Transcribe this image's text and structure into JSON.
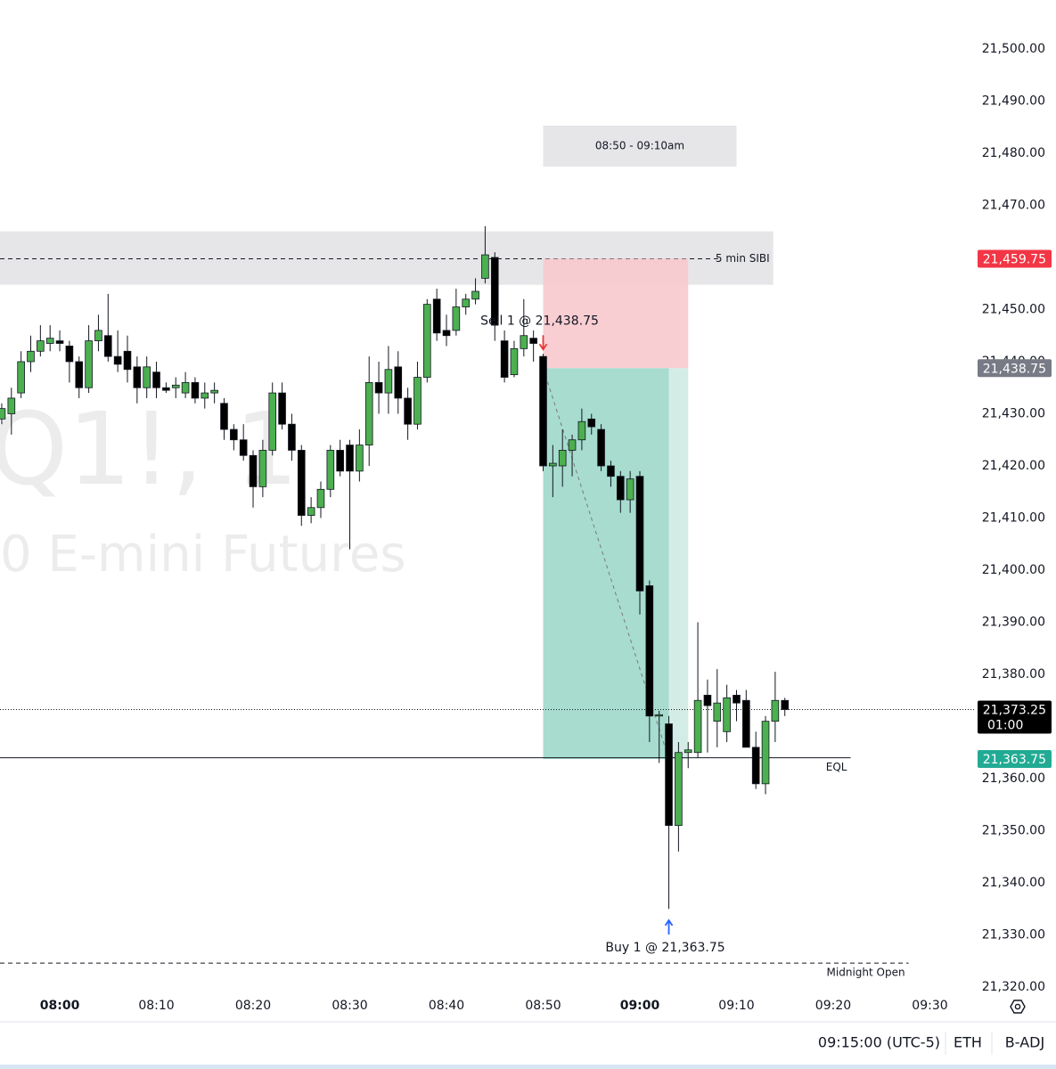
{
  "chart_data": {
    "type": "candlestick",
    "watermark": [
      "Q1!, 1",
      "0 E-mini Futures"
    ],
    "x": [
      474,
      475,
      476,
      477,
      478,
      479,
      480,
      481,
      482,
      483,
      484,
      485,
      486,
      487,
      488,
      489,
      490,
      491,
      492,
      493,
      494,
      495,
      496,
      497,
      498,
      499,
      500,
      501,
      502,
      503,
      504,
      505,
      506,
      507,
      508,
      509,
      510,
      511,
      512,
      513,
      514,
      515,
      516,
      517,
      518,
      519,
      520,
      521,
      522,
      523,
      524,
      525,
      526,
      527,
      528,
      529,
      530,
      531,
      532,
      533,
      534,
      535,
      536,
      537,
      538,
      539,
      540,
      541,
      542,
      543,
      544,
      545,
      546,
      547,
      548,
      549,
      550,
      551,
      552,
      553,
      554,
      555
    ],
    "open": [
      21429,
      21430,
      21434,
      21440,
      21442,
      21443.5,
      21444,
      21443,
      21440,
      21435,
      21444,
      21445,
      21441,
      21442,
      21439,
      21435,
      21438,
      21435,
      21435,
      21434,
      21436,
      21433,
      21434,
      21432,
      21427,
      21425,
      21422,
      21416,
      21423,
      21434,
      21428,
      21423,
      21410.5,
      21412,
      21415.5,
      21423,
      21424,
      21419,
      21424,
      21436,
      21434,
      21439,
      21433,
      21428,
      21437,
      21452,
      21446,
      21446,
      21450.5,
      21452,
      21456,
      21460,
      21444,
      21437.5,
      21442.5,
      21444.5,
      21441,
      21420,
      21420,
      21423,
      21425,
      21429,
      21427,
      21420,
      21418,
      21413.5,
      21418,
      21397,
      21372,
      21370.5,
      21351,
      21365,
      21365,
      21376,
      21371,
      21369,
      21376,
      21375,
      21366,
      21359,
      21371,
      21375
    ],
    "high": [
      21432,
      21435,
      21442,
      21445,
      21447,
      21447,
      21446,
      21444,
      21441,
      21447,
      21449,
      21453,
      21446,
      21445,
      21441,
      21441,
      21440,
      21436,
      21437,
      21438,
      21437,
      21436,
      21436,
      21433,
      21428,
      21428,
      21423,
      21425,
      21436,
      21436,
      21430,
      21424,
      21414,
      21417,
      21424,
      21425,
      21425,
      21427,
      21441,
      21440,
      21443,
      21442,
      21435,
      21440,
      21452,
      21454,
      21449,
      21454,
      21453,
      21456,
      21466,
      21461,
      21446,
      21444,
      21452,
      21446,
      21441.5,
      21424,
      21427,
      21426,
      21431,
      21430,
      21428,
      21421,
      21419,
      21419,
      21419,
      21398,
      21373,
      21372,
      21367,
      21367,
      21390,
      21379,
      21381,
      21378,
      21377,
      21377,
      21369,
      21372,
      21380.5,
      21375.5
    ],
    "low": [
      21428,
      21426,
      21433,
      21438,
      21441,
      21442,
      21442,
      21436,
      21433,
      21434,
      21442,
      21440,
      21438,
      21436,
      21432,
      21433,
      21433,
      21434,
      21433,
      21433,
      21432,
      21431,
      21432,
      21425,
      21423,
      21421,
      21412,
      21414,
      21422,
      21427,
      21421,
      21408.5,
      21409,
      21410,
      21414,
      21418,
      21404,
      21417,
      21420,
      21430,
      21430,
      21430,
      21425,
      21427,
      21436,
      21444,
      21443,
      21445,
      21449,
      21451,
      21455,
      21444,
      21436,
      21437,
      21441,
      21440,
      21419,
      21414,
      21416,
      21418,
      21423,
      21426,
      21419,
      21416,
      21411,
      21411,
      21391.5,
      21367,
      21363,
      21335,
      21346,
      21362,
      21364,
      21365,
      21366,
      21367,
      21371,
      21366,
      21358,
      21357,
      21367,
      21372
    ],
    "close": [
      21431,
      21433,
      21440,
      21442,
      21444,
      21444.5,
      21443.5,
      21440,
      21435,
      21444,
      21446,
      21441,
      21439.5,
      21438.5,
      21435,
      21439,
      21435,
      21434.5,
      21435.5,
      21436,
      21433,
      21434,
      21434.5,
      21427,
      21425,
      21422,
      21416,
      21423,
      21434,
      21428,
      21423,
      21410.5,
      21412,
      21415.5,
      21423,
      21419,
      21419,
      21424,
      21436,
      21434,
      21438.5,
      21433,
      21428,
      21437,
      21451,
      21445.5,
      21445,
      21450.5,
      21452,
      21453.5,
      21460.5,
      21447,
      21437,
      21442.5,
      21445,
      21443.5,
      21420,
      21420.5,
      21423,
      21425,
      21428.5,
      21427.5,
      21420,
      21418,
      21413.5,
      21417.5,
      21396,
      21372,
      21372.25,
      21351,
      21365,
      21365.5,
      21375,
      21374,
      21374.5,
      21375.5,
      21374.5,
      21366,
      21359,
      21371,
      21375,
      21373.25
    ],
    "up_color": "#4caf50",
    "down_color": "#000000",
    "xlim": [
      473.82,
      574.75
    ],
    "xticks": [
      {
        "value": 480,
        "label": "08:00"
      },
      {
        "value": 490,
        "label": "08:10"
      },
      {
        "value": 500,
        "label": "08:20"
      },
      {
        "value": 510,
        "label": "08:30"
      },
      {
        "value": 520,
        "label": "08:40"
      },
      {
        "value": 530,
        "label": "08:50"
      },
      {
        "value": 540,
        "label": "09:00"
      },
      {
        "value": 550,
        "label": "09:10"
      },
      {
        "value": 560,
        "label": "09:20"
      },
      {
        "value": 570,
        "label": "09:30"
      }
    ],
    "ylim": [
      21318.8,
      21509.4
    ],
    "yticks": [
      {
        "value": 21320,
        "label": "21,320.00"
      },
      {
        "value": 21330,
        "label": "21,330.00"
      },
      {
        "value": 21340,
        "label": "21,340.00"
      },
      {
        "value": 21350,
        "label": "21,350.00"
      },
      {
        "value": 21360,
        "label": "21,360.00"
      },
      {
        "value": 21370,
        "label": "21,370.00"
      },
      {
        "value": 21380,
        "label": "21,380.00"
      },
      {
        "value": 21390,
        "label": "21,390.00"
      },
      {
        "value": 21400,
        "label": "21,400.00"
      },
      {
        "value": 21410,
        "label": "21,410.00"
      },
      {
        "value": 21420,
        "label": "21,420.00"
      },
      {
        "value": 21430,
        "label": "21,430.00"
      },
      {
        "value": 21440,
        "label": "21,440.00"
      },
      {
        "value": 21450,
        "label": "21,450.00"
      },
      {
        "value": 21460,
        "label": "21,460.00"
      },
      {
        "value": 21470,
        "label": "21,470.00"
      },
      {
        "value": 21480,
        "label": "21,480.00"
      },
      {
        "value": 21490,
        "label": "21,490.00"
      },
      {
        "value": 21500,
        "label": "21,500.00"
      }
    ],
    "session_box": {
      "label": "08:50 - 09:10am",
      "start": 530,
      "end": 550
    },
    "sibi_zone": {
      "label": "5 min SIBI",
      "high": 21465,
      "low": 21454.75,
      "line": 21459.75,
      "end": 553.8
    },
    "position": {
      "start": 530,
      "fill_end": 543,
      "end": 545,
      "entry": {
        "value": 21438.75,
        "label": "21,438.75"
      },
      "stop": {
        "value": 21459.75,
        "label": "21,459.75"
      },
      "target": {
        "value": 21363.75,
        "label": "21,363.75"
      },
      "entry_text": "Sell 1 @ 21,438.75",
      "exit_text": "Buy 1 @ 21,363.75"
    },
    "levels": [
      {
        "label": "EQL",
        "value": 21364,
        "end": 561.8,
        "style": "solid"
      },
      {
        "label": "Midnight Open",
        "value": 21324.6,
        "end": 567.8,
        "style": "dashed"
      }
    ],
    "last_price": {
      "value": 21373.25,
      "label": "21,373.25",
      "countdown": "01:00"
    }
  },
  "status_bar": {
    "time": "09:15:00 (UTC-5)",
    "session": "ETH",
    "adjustment": "B-ADJ"
  }
}
